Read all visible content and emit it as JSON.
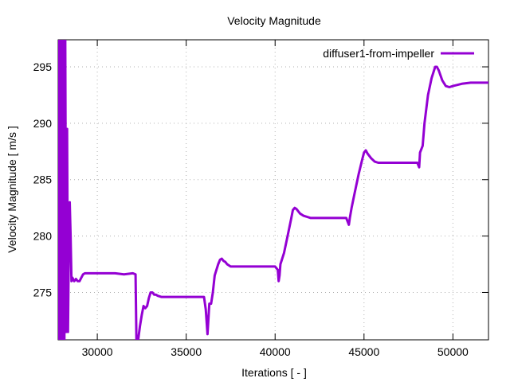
{
  "chart_data": {
    "type": "line",
    "title": "Velocity Magnitude",
    "xlabel": "Iterations [ - ]",
    "ylabel": "Velocity Magnitude [ m/s ]",
    "xlim": [
      27800,
      52000
    ],
    "ylim": [
      270.8,
      297.4
    ],
    "xticks": [
      30000,
      35000,
      40000,
      45000,
      50000
    ],
    "yticks": [
      275,
      280,
      285,
      290,
      295
    ],
    "grid": true,
    "legend_position": "top-right",
    "series": [
      {
        "name": "diffuser1-from-impeller",
        "color": "#9400d3",
        "x": [
          27800,
          27850,
          27900,
          27950,
          28000,
          28050,
          28100,
          28150,
          28200,
          28250,
          28300,
          28350,
          28400,
          28450,
          28500,
          28550,
          28600,
          28700,
          28800,
          28900,
          29000,
          29100,
          29200,
          29300,
          29400,
          29600,
          29800,
          30000,
          30500,
          31000,
          31500,
          32000,
          32150,
          32200,
          32300,
          32400,
          32500,
          32600,
          32700,
          32800,
          32900,
          33000,
          33100,
          33200,
          33300,
          33400,
          33600,
          33800,
          34000,
          35000,
          36000,
          36100,
          36200,
          36300,
          36400,
          36500,
          36600,
          36700,
          36800,
          36900,
          37000,
          37100,
          37200,
          37300,
          37500,
          37700,
          38000,
          39000,
          40000,
          40150,
          40200,
          40250,
          40300,
          40500,
          40700,
          40900,
          41000,
          41100,
          41200,
          41400,
          41600,
          41800,
          42000,
          43000,
          44000,
          44150,
          44200,
          44300,
          44500,
          44700,
          44900,
          45000,
          45100,
          45200,
          45400,
          45600,
          45800,
          46000,
          47000,
          48000,
          48100,
          48150,
          48300,
          48400,
          48600,
          48800,
          49000,
          49100,
          49200,
          49400,
          49600,
          49800,
          50000,
          50500,
          51000,
          51500,
          52000
        ],
        "values": [
          297.4,
          270.8,
          297.4,
          270.8,
          297.4,
          270.8,
          297.4,
          270.8,
          297.4,
          271.5,
          289.5,
          271.5,
          279.0,
          283.0,
          280.0,
          276.0,
          276.3,
          276.0,
          276.2,
          276.0,
          276.0,
          276.3,
          276.6,
          276.7,
          276.7,
          276.7,
          276.7,
          276.7,
          276.7,
          276.7,
          276.6,
          276.7,
          276.6,
          270.8,
          270.8,
          272.0,
          273.0,
          273.8,
          273.6,
          273.8,
          274.5,
          275.0,
          275.0,
          274.8,
          274.8,
          274.7,
          274.6,
          274.6,
          274.6,
          274.6,
          274.6,
          273.5,
          271.3,
          274.0,
          274.0,
          275.0,
          276.5,
          277.0,
          277.5,
          277.9,
          278.0,
          277.8,
          277.7,
          277.5,
          277.3,
          277.3,
          277.3,
          277.3,
          277.3,
          277.0,
          276.0,
          276.5,
          277.5,
          278.5,
          280.0,
          281.5,
          282.3,
          282.5,
          282.4,
          282.0,
          281.8,
          281.7,
          281.6,
          281.6,
          281.6,
          281.0,
          281.6,
          282.5,
          284.0,
          285.5,
          286.8,
          287.4,
          287.6,
          287.3,
          286.9,
          286.6,
          286.5,
          286.5,
          286.5,
          286.5,
          286.1,
          287.4,
          288.0,
          290.0,
          292.5,
          294.0,
          295.0,
          295.0,
          294.7,
          293.8,
          293.3,
          293.2,
          293.3,
          293.5,
          293.6,
          293.6,
          293.6
        ]
      }
    ]
  }
}
